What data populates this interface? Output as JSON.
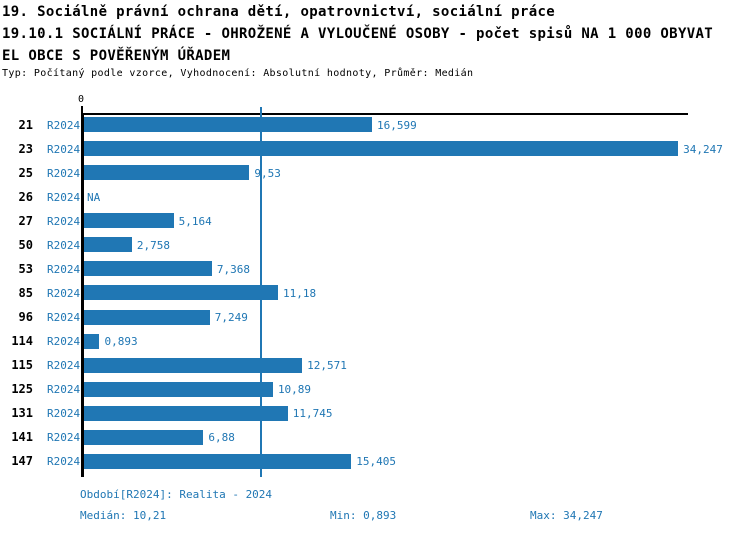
{
  "header": {
    "line1": "19. Sociálně právní ochrana dětí, opatrovnictví, sociální práce",
    "line2": "19.10.1 SOCIÁLNÍ PRÁCE - OHROŽENÉ A VYLOUČENÉ OSOBY - počet spisů NA 1 000 OBYVAT",
    "line3": "EL OBCE S POVĚŘENÝM ÚŘADEM",
    "meta": "Typ: Počítaný podle vzorce, Vyhodnocení: Absolutní hodnoty, Průměr: Medián"
  },
  "chart_data": {
    "type": "bar",
    "orientation": "horizontal",
    "series_label": "R2024",
    "categories": [
      "21",
      "23",
      "25",
      "26",
      "27",
      "50",
      "53",
      "85",
      "96",
      "114",
      "115",
      "125",
      "131",
      "141",
      "147"
    ],
    "values": [
      16.599,
      34.247,
      9.53,
      null,
      5.164,
      2.758,
      7.368,
      11.18,
      7.249,
      0.893,
      12.571,
      10.89,
      11.745,
      6.88,
      15.405
    ],
    "value_labels": [
      "16,599",
      "34,247",
      "9,53",
      "NA",
      "5,164",
      "2,758",
      "7,368",
      "11,18",
      "7,249",
      "0,893",
      "12,571",
      "10,89",
      "11,745",
      "6,88",
      "15,405"
    ],
    "axis": {
      "zero_label": "0",
      "xlim": [
        0,
        35
      ],
      "median_value": 10.21,
      "median_line": true,
      "grid": false
    },
    "legend_position": "none",
    "colors": {
      "bar": "#2077b4",
      "value_text": "#2077b4",
      "series_text": "#2077b4",
      "median_line": "#2077b4",
      "axis": "#000000",
      "row_number": "#000000"
    }
  },
  "footer": {
    "period": "Období[R2024]: Realita - 2024",
    "median": "Medián: 10,21",
    "min": "Min: 0,893",
    "max": "Max: 34,247"
  }
}
